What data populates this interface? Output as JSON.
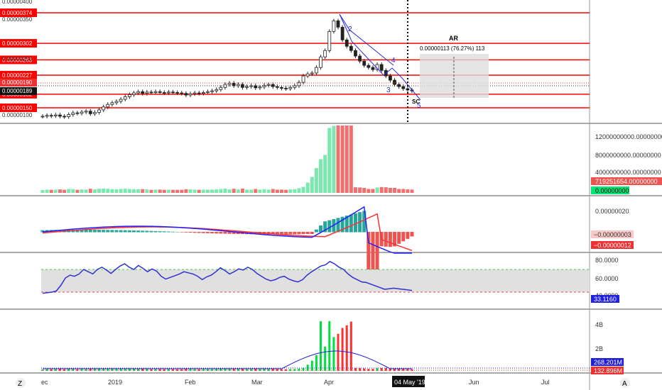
{
  "corner_left": "Z",
  "corner_right": "A",
  "price_pane": {
    "axis_ticks": [
      "0.00000400",
      "0.00000350",
      "0.00000250",
      "0.00000100"
    ],
    "hlines": [
      {
        "value": 3.74e-06,
        "label": "0.00000374"
      },
      {
        "value": 3.02e-06,
        "label": "0.00000302"
      },
      {
        "value": 2.63e-06,
        "label": "0.00000263"
      },
      {
        "value": 2.27e-06,
        "label": "0.00000227"
      },
      {
        "value": 1.82e-06,
        "label": "0.00000182"
      },
      {
        "value": 1.5e-06,
        "label": "0.00000150"
      }
    ],
    "current_price_label": "0.00000190",
    "last_price_label": "0.00000189",
    "wave_labels": [
      "2",
      "3",
      "4",
      "5"
    ],
    "measure_title": "AR",
    "measure_text": "0.00000113 (76.27%) 113",
    "sc_label": "SC"
  },
  "volume_pane": {
    "axis_ticks": [
      "12000000000.00000000",
      "8000000000.00000000",
      "4000000000.00000000"
    ],
    "value_red": "719251654.00000000",
    "value_green": "0.00000000"
  },
  "macd_pane": {
    "axis_ticks": [
      "0.00000020"
    ],
    "value_pink": "−0.00000003",
    "value_red": "−0.00000012"
  },
  "rsi_pane": {
    "axis_ticks": [
      "80.0000",
      "60.0000",
      "40.0000"
    ],
    "value": "33.1160",
    "upper_band": 70,
    "lower_band": 30
  },
  "vol2_pane": {
    "axis_ticks": [
      "4B",
      "2B"
    ],
    "value_blue": "268.201M",
    "value_red": "132.896M"
  },
  "time_axis": {
    "labels": [
      "ec",
      "2019",
      "Feb",
      "Mar",
      "Apr",
      "Jun",
      "Jul"
    ],
    "cursor_label": "04 May '19"
  },
  "colors": {
    "up": "#26a69a",
    "down": "#ef5350",
    "level_line": "#ff0000",
    "macd": "#2020ff",
    "signal": "#ff3030",
    "rsi": "#3030d0"
  },
  "chart_data": {
    "type": "candlestick",
    "series_close": [
      1.3,
      1.32,
      1.31,
      1.33,
      1.3,
      1.29,
      1.34,
      1.38,
      1.37,
      1.4,
      1.42,
      1.36,
      1.39,
      1.45,
      1.52,
      1.58,
      1.62,
      1.65,
      1.7,
      1.76,
      1.81,
      1.85,
      1.88,
      1.84,
      1.87,
      1.86,
      1.88,
      1.86,
      1.85,
      1.87,
      1.86,
      1.85,
      1.84,
      1.8,
      1.83,
      1.85,
      1.84,
      1.86,
      1.88,
      1.9,
      1.93,
      1.98,
      2.05,
      2.08,
      2.02,
      2.05,
      1.98,
      2.0,
      2.02,
      1.97,
      1.99,
      2.03,
      2.05,
      2.0,
      1.98,
      1.96,
      1.95,
      1.98,
      2.02,
      2.1,
      2.25,
      2.3,
      2.32,
      2.45,
      2.7,
      2.85,
      3.3,
      3.55,
      3.4,
      3.1,
      2.95,
      2.85,
      2.72,
      2.6,
      2.5,
      2.45,
      2.4,
      2.52,
      2.38,
      2.25,
      2.15,
      2.05,
      2.0,
      1.95,
      1.92,
      1.9
    ],
    "rsi_values": [
      28,
      29,
      30,
      32,
      42,
      55,
      60,
      58,
      62,
      70,
      66,
      62,
      70,
      74,
      69,
      63,
      70,
      76,
      80,
      74,
      70,
      77,
      72,
      66,
      71,
      67,
      58,
      53,
      56,
      59,
      62,
      66,
      64,
      62,
      58,
      52,
      57,
      60,
      66,
      73,
      68,
      62,
      66,
      71,
      69,
      74,
      70,
      63,
      58,
      53,
      50,
      52,
      56,
      58,
      53,
      50,
      48,
      52,
      60,
      66,
      71,
      76,
      78,
      84,
      80,
      74,
      70,
      62,
      56,
      52,
      48,
      47,
      44,
      41,
      38,
      35,
      36,
      37,
      36,
      35,
      34,
      33
    ],
    "ylim": [
      1e-06,
      4e-06
    ]
  }
}
